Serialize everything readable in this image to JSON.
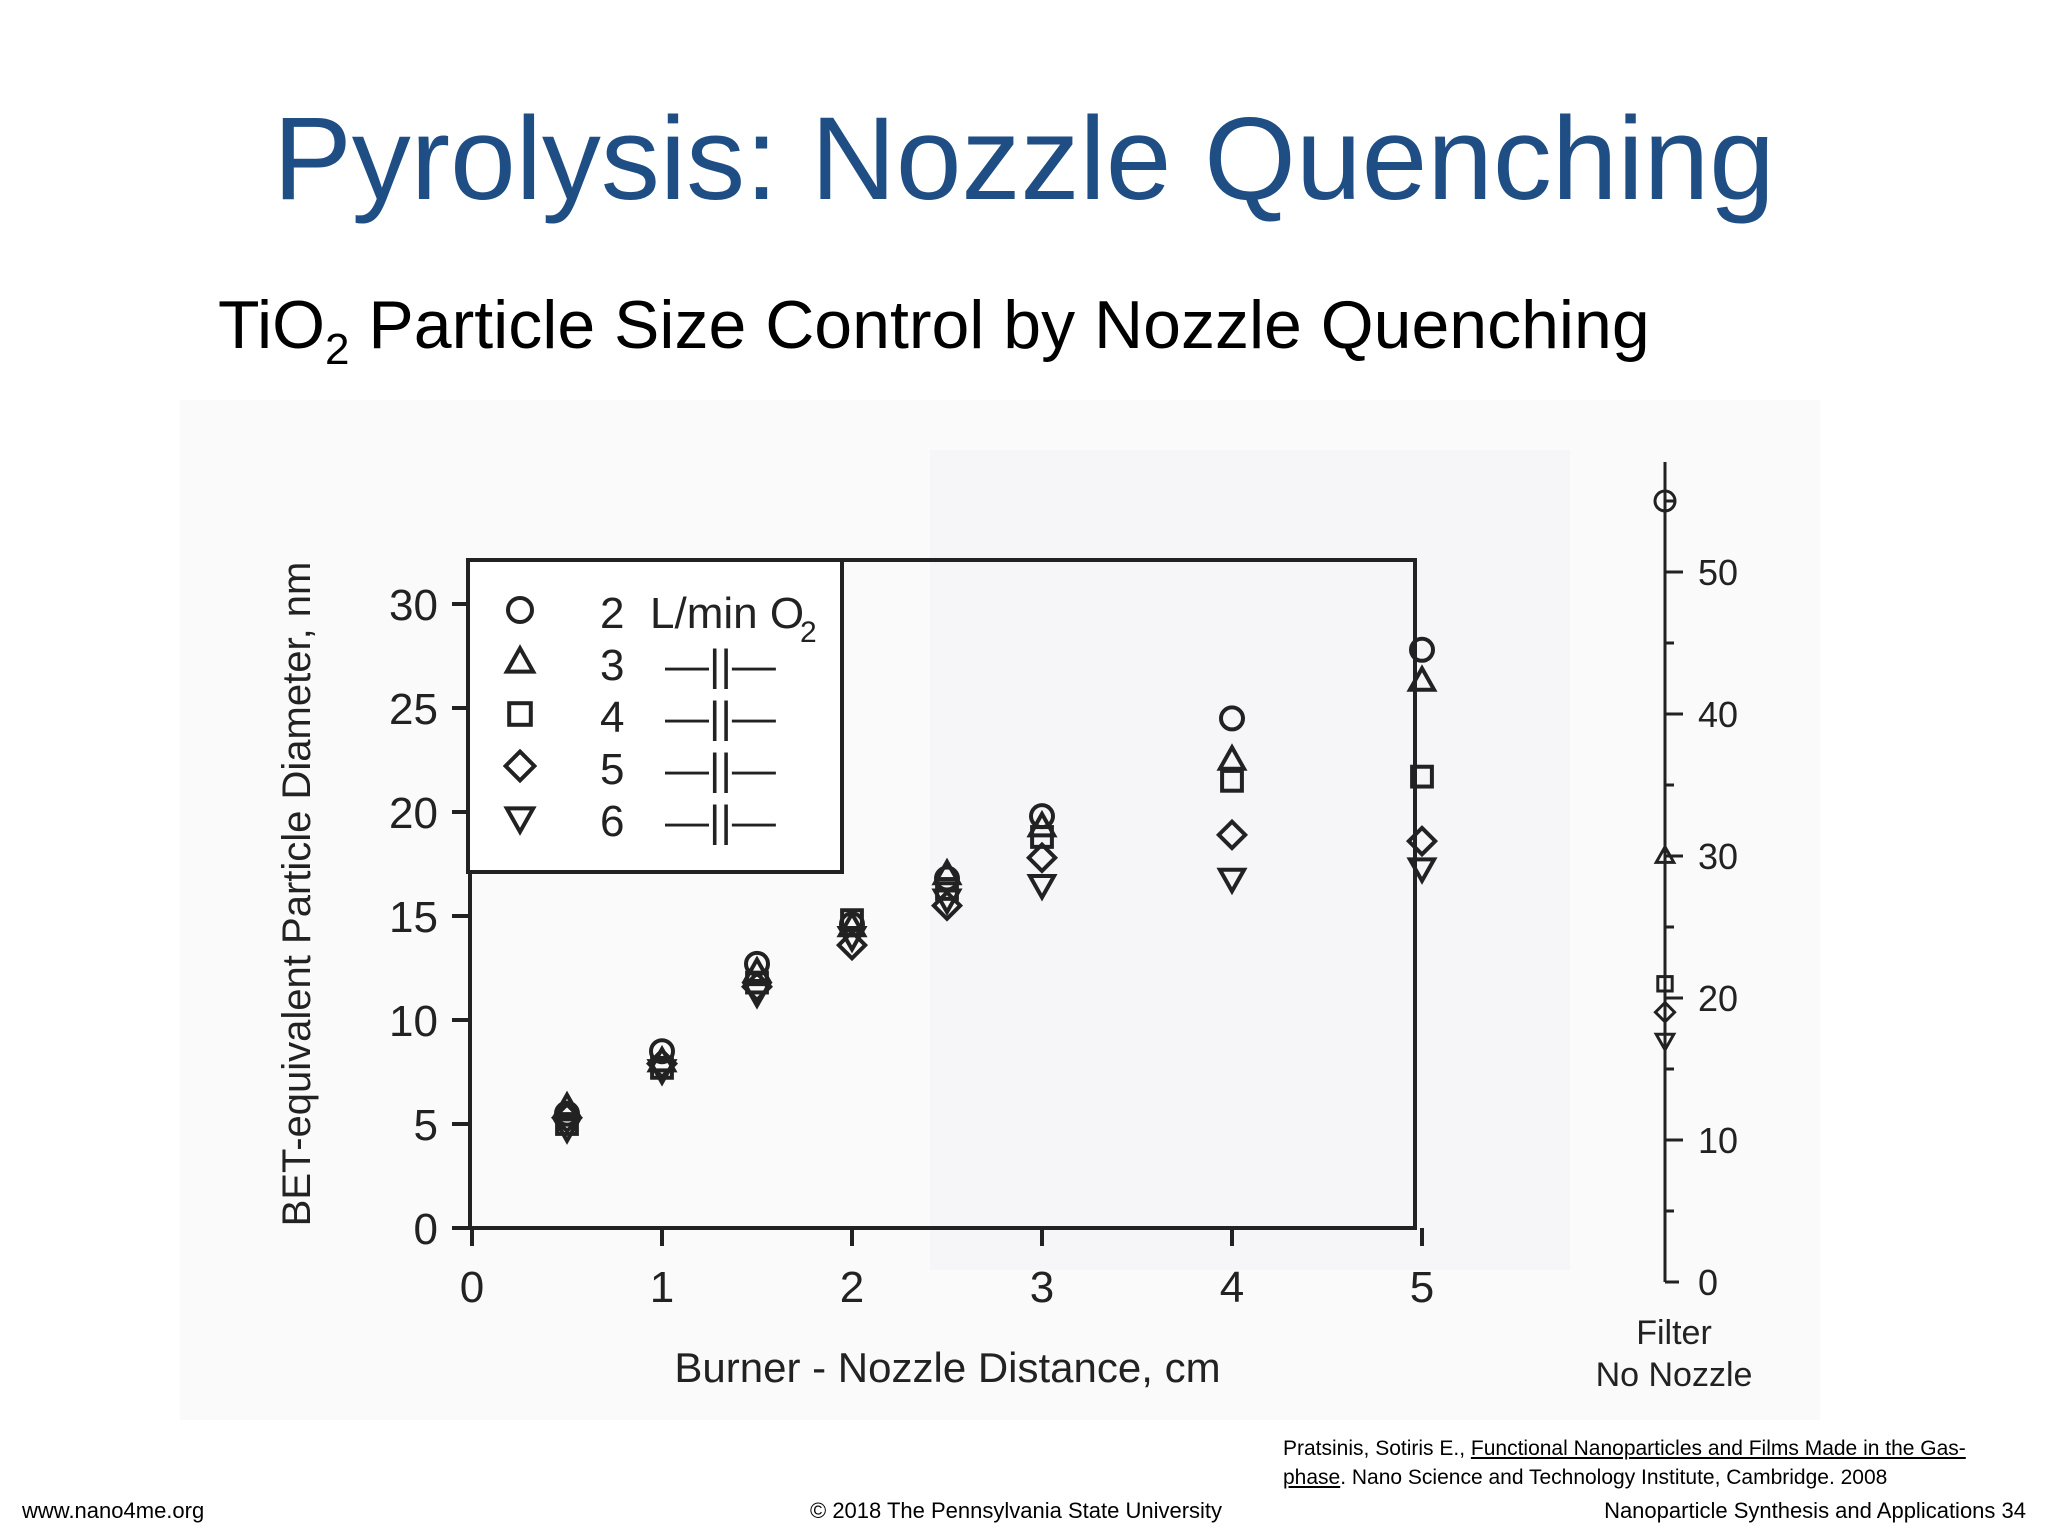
{
  "slide": {
    "title": "Pyrolysis: Nozzle Quenching",
    "subtitle_pre": "TiO",
    "subtitle_sub": "2",
    "subtitle_post": " Particle Size Control by Nozzle Quenching"
  },
  "citation": {
    "author": "Pratsinis, Sotiris E., ",
    "book_title": "Functional Nanoparticles and Films Made in the Gas-phase",
    "rest": ". Nano Science and Technology Institute, Cambridge. 2008"
  },
  "footer": {
    "website": "www.nano4me.org",
    "copyright": "© 2018 The Pennsylvania State University",
    "course": "Nanoparticle Synthesis and Applications 34"
  },
  "chart_data": [
    {
      "type": "scatter",
      "xlabel": "Burner - Nozzle Distance, cm",
      "ylabel": "BET-equivalent Particle Diameter, nm",
      "xlim": [
        0,
        5
      ],
      "ylim": [
        0,
        30
      ],
      "xticks": [
        "0",
        "1",
        "2",
        "3",
        "4",
        "5"
      ],
      "yticks": [
        "0",
        "5",
        "10",
        "15",
        "20",
        "25",
        "30"
      ],
      "grid": false,
      "legend_position": "top-left",
      "legend_unit": "L/min O",
      "legend_unit_sub": "2",
      "legend_ditto": "—||—",
      "series": [
        {
          "name": "2",
          "marker": "circle",
          "x": [
            0.5,
            1,
            1.5,
            2,
            2.5,
            3,
            4,
            5
          ],
          "y": [
            5.5,
            8.5,
            12.7,
            14.6,
            16.8,
            19.8,
            24.5,
            27.8
          ]
        },
        {
          "name": "3",
          "marker": "triangle-up",
          "x": [
            0.5,
            1,
            1.5,
            2,
            2.5,
            3,
            4,
            5
          ],
          "y": [
            5.8,
            8,
            12.3,
            14.5,
            17.0,
            19.3,
            22.5,
            26.3
          ]
        },
        {
          "name": "4",
          "marker": "square",
          "x": [
            0.5,
            1,
            1.5,
            2,
            2.5,
            3,
            4,
            5
          ],
          "y": [
            5.0,
            7.7,
            11.8,
            14.8,
            16.3,
            18.8,
            21.5,
            21.7
          ]
        },
        {
          "name": "5",
          "marker": "diamond",
          "x": [
            0.5,
            1,
            1.5,
            2,
            2.5,
            3,
            4,
            5
          ],
          "y": [
            5.3,
            7.9,
            11.6,
            13.6,
            15.5,
            17.8,
            18.9,
            18.6
          ]
        },
        {
          "name": "6",
          "marker": "triangle-down",
          "x": [
            0.5,
            1,
            1.5,
            2,
            2.5,
            3,
            4,
            5
          ],
          "y": [
            4.8,
            7.6,
            11.3,
            14.0,
            15.8,
            16.5,
            16.8,
            17.3
          ]
        }
      ]
    },
    {
      "type": "scatter",
      "xlabel_line1": "Filter",
      "xlabel_line2": "No Nozzle",
      "ylim": [
        0,
        50
      ],
      "yticks": [
        "0",
        "10",
        "20",
        "30",
        "40",
        "50"
      ],
      "grid": false,
      "points": [
        {
          "series": "2",
          "marker": "circle",
          "y": 55
        },
        {
          "series": "3",
          "marker": "triangle-up",
          "y": 30
        },
        {
          "series": "4",
          "marker": "square",
          "y": 21
        },
        {
          "series": "5",
          "marker": "diamond",
          "y": 19
        },
        {
          "series": "6",
          "marker": "triangle-down",
          "y": 17
        }
      ]
    }
  ]
}
